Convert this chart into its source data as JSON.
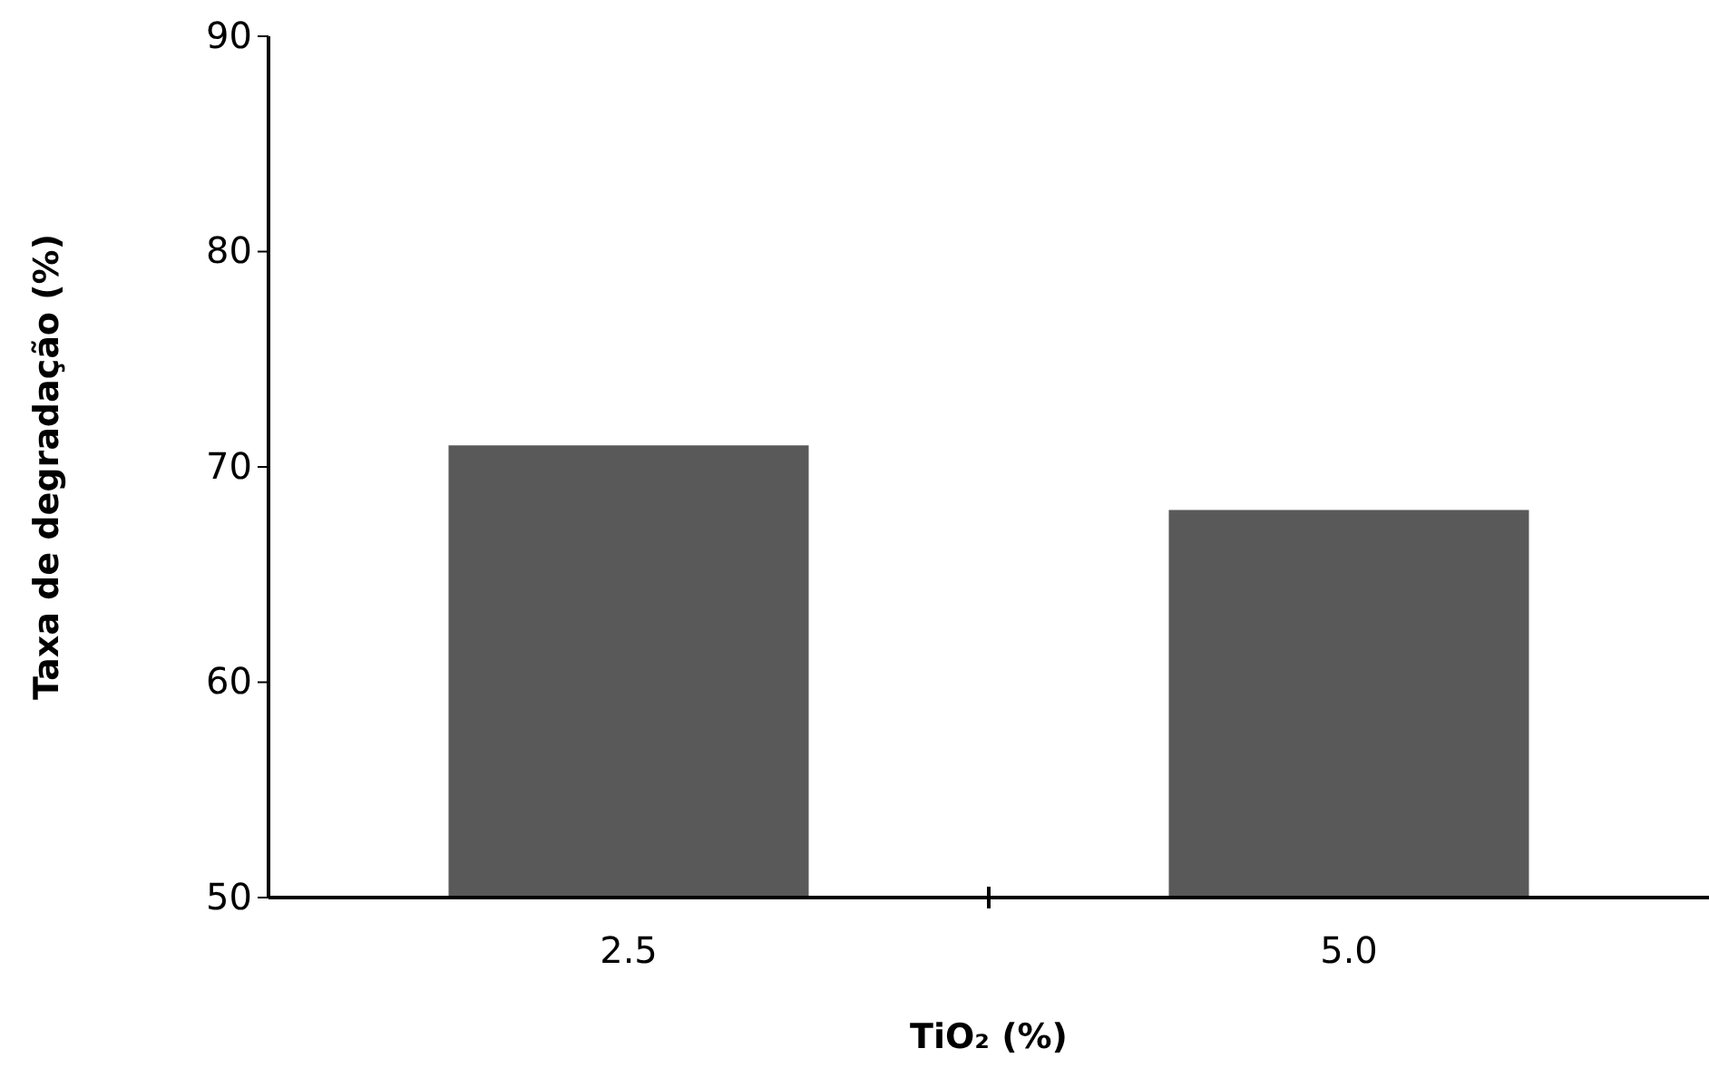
{
  "chart_data": {
    "type": "bar",
    "categories": [
      "2.5",
      "5.0"
    ],
    "values": [
      71,
      68
    ],
    "color": "#595959",
    "xlabel": "TiO₂ (%)",
    "ylabel": "Taxa de degradação (%)",
    "ylim": [
      50,
      90
    ],
    "yticks": [
      50,
      60,
      70,
      80,
      90
    ],
    "grid": false
  }
}
